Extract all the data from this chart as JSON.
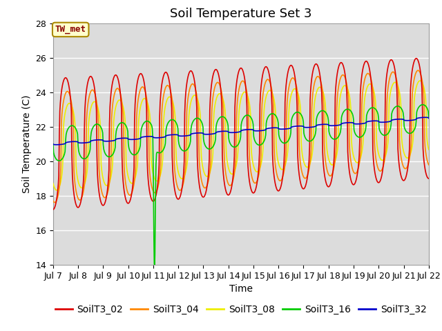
{
  "title": "Soil Temperature Set 3",
  "xlabel": "Time",
  "ylabel": "Soil Temperature (C)",
  "ylim": [
    14,
    28
  ],
  "background_color": "#dcdcdc",
  "series_colors": {
    "SoilT3_02": "#dd0000",
    "SoilT3_04": "#ff8800",
    "SoilT3_08": "#eeee00",
    "SoilT3_16": "#00cc00",
    "SoilT3_32": "#0000cc"
  },
  "annotation": "TW_met",
  "annotation_color": "#880000",
  "annotation_bg": "#ffffcc",
  "annotation_border": "#aa8800",
  "x_tick_labels": [
    "Jul 7",
    "Jul 8",
    "Jul 9",
    "Jul 10",
    "Jul 11",
    "Jul 12",
    "Jul 13",
    "Jul 14",
    "Jul 15",
    "Jul 16",
    "Jul 17",
    "Jul 18",
    "Jul 19",
    "Jul 20",
    "Jul 21",
    "Jul 22"
  ],
  "title_fontsize": 13,
  "axis_fontsize": 10,
  "tick_fontsize": 9,
  "legend_fontsize": 10
}
